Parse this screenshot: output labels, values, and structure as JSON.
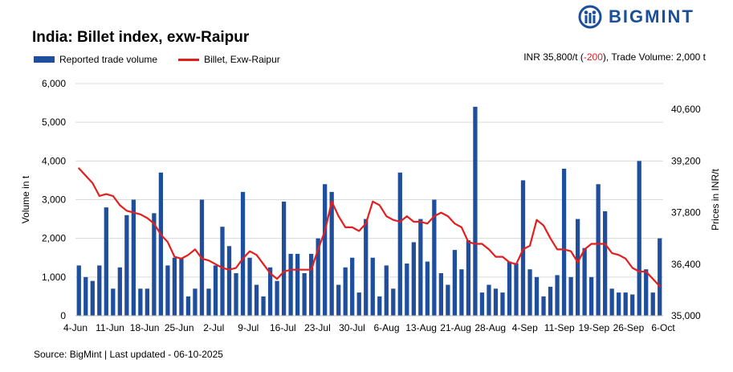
{
  "title": "India: Billet index, exw-Raipur",
  "logo_text": "BIGMINT",
  "info": {
    "price_text": "INR 35,800/t (",
    "change": "-200",
    "volume_text": "), Trade Volume: 2,000 t"
  },
  "source": "Source: BigMint | Last updated - 06-10-2025",
  "colors": {
    "bar": "#1f4e9c",
    "line": "#e41e1e",
    "logo": "#1a4f9c"
  },
  "chart_data": {
    "type": "bar+line",
    "x_tick_labels": [
      "4-Jun",
      "11-Jun",
      "18-Jun",
      "25-Jun",
      "2-Jul",
      "9-Jul",
      "16-Jul",
      "23-Jul",
      "30-Jul",
      "6-Aug",
      "13-Aug",
      "21-Aug",
      "28-Aug",
      "4-Sep",
      "11-Sep",
      "19-Sep",
      "26-Sep",
      "6-Oct"
    ],
    "y_left": {
      "label": "Volume in t",
      "min": 0,
      "max": 6000,
      "ticks": [
        0,
        1000,
        2000,
        3000,
        4000,
        5000,
        6000
      ],
      "tick_labels": [
        "0",
        "1,000",
        "2,000",
        "3,000",
        "4,000",
        "5,000",
        "6,000"
      ]
    },
    "y_right": {
      "label": "Prices in INR/t",
      "min": 35000,
      "max": 41300,
      "ticks": [
        35000,
        36400,
        37800,
        39200,
        40600
      ],
      "tick_labels": [
        "35,000",
        "36,400",
        "37,800",
        "39,200",
        "40,600"
      ]
    },
    "series": [
      {
        "name": "Reported trade volume",
        "type": "bar",
        "axis": "left",
        "values": [
          1300,
          1000,
          900,
          1300,
          2800,
          700,
          1250,
          2600,
          3000,
          700,
          700,
          2650,
          3700,
          1300,
          1500,
          1500,
          500,
          700,
          3000,
          700,
          1300,
          2300,
          1800,
          1100,
          3200,
          1500,
          800,
          500,
          1250,
          900,
          2950,
          1600,
          1600,
          1100,
          1600,
          2000,
          3400,
          3200,
          800,
          1250,
          1500,
          600,
          2500,
          1500,
          500,
          1300,
          700,
          3700,
          1350,
          1900,
          2500,
          1400,
          3000,
          1100,
          800,
          1700,
          1200,
          1950,
          5400,
          600,
          800,
          700,
          600,
          1400,
          1350,
          3500,
          1200,
          1000,
          500,
          750,
          1050,
          3800,
          1000,
          2500,
          1750,
          1000,
          3400,
          2700,
          700,
          600,
          600,
          550,
          4000,
          1200,
          600,
          2000
        ]
      },
      {
        "name": "Billet, Exw-Raipur",
        "type": "line",
        "axis": "right",
        "values": [
          39000,
          38800,
          38600,
          38250,
          38300,
          38250,
          38000,
          37850,
          37800,
          37750,
          37650,
          37500,
          37200,
          37000,
          36600,
          36550,
          36650,
          36800,
          36550,
          36500,
          36400,
          36300,
          36250,
          36300,
          36550,
          36750,
          36650,
          36400,
          36150,
          36000,
          36200,
          36250,
          36250,
          36250,
          36250,
          36800,
          37300,
          38100,
          37700,
          37400,
          37400,
          37300,
          37500,
          38100,
          38000,
          37700,
          37600,
          37550,
          37700,
          37550,
          37550,
          37500,
          37700,
          37800,
          37700,
          37500,
          37400,
          37000,
          36950,
          36950,
          36800,
          36600,
          36600,
          36450,
          36400,
          36800,
          36900,
          37600,
          37450,
          37100,
          36800,
          36800,
          36750,
          36450,
          36800,
          36950,
          36950,
          36950,
          36700,
          36650,
          36550,
          36300,
          36200,
          36200,
          36000,
          35800
        ]
      }
    ]
  }
}
